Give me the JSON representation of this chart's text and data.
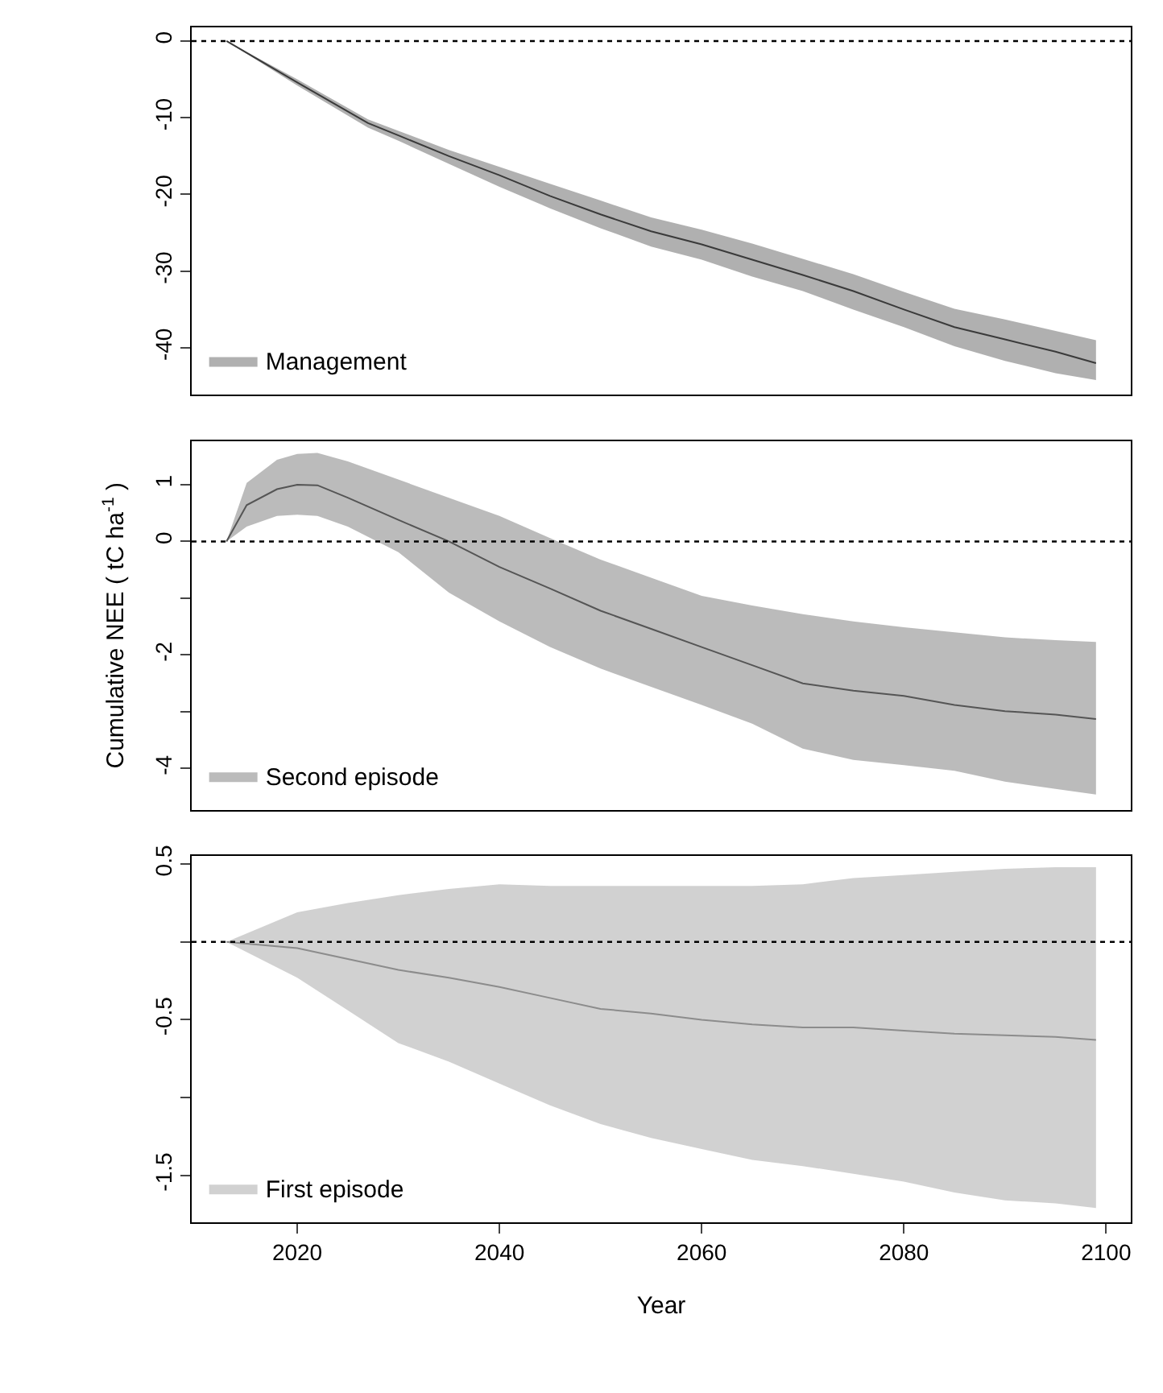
{
  "chart_data": [
    {
      "type": "line",
      "xlim": [
        2009.56,
        2102.44
      ],
      "ylim": [
        -46.1,
        1.8
      ],
      "yticks": [
        0,
        -10,
        -20,
        -30,
        -40
      ],
      "tick_labels": "y",
      "legend": "bottom left",
      "ref_lines": [
        {
          "axis": "y",
          "value": 0,
          "line_style": "dotted",
          "color": "#000000"
        }
      ],
      "series": [
        {
          "name": "Management",
          "color": "#3a3a3a",
          "x": [
            2013,
            2020,
            2027,
            2030,
            2035,
            2040,
            2045,
            2050,
            2055,
            2060,
            2065,
            2070,
            2075,
            2080,
            2085,
            2090,
            2095,
            2099
          ],
          "values": [
            0,
            -5.4,
            -10.7,
            -12.3,
            -15,
            -17.5,
            -20.2,
            -22.6,
            -24.8,
            -26.5,
            -28.5,
            -30.5,
            -32.6,
            -35,
            -37.3,
            -38.9,
            -40.5,
            -42
          ],
          "lower": [
            0,
            -5.8,
            -11.3,
            -13,
            -16,
            -19,
            -21.8,
            -24.4,
            -26.8,
            -28.5,
            -30.7,
            -32.6,
            -35,
            -37.3,
            -39.8,
            -41.7,
            -43.3,
            -44.2
          ],
          "upper": [
            0,
            -5,
            -10.2,
            -11.7,
            -14.2,
            -16.4,
            -18.6,
            -20.8,
            -23,
            -24.6,
            -26.4,
            -28.4,
            -30.4,
            -32.7,
            -34.9,
            -36.3,
            -37.8,
            -39
          ]
        }
      ]
    },
    {
      "type": "line",
      "xlim": [
        2009.56,
        2102.44
      ],
      "ylim": [
        -4.73,
        1.77
      ],
      "yticks": [
        1,
        0,
        {
          "value": -1,
          "label": null
        },
        -2,
        {
          "value": -3,
          "label": null
        },
        -4
      ],
      "tick_labels": "y",
      "legend": "bottom left",
      "ylabel": "Cumulative NEE ( tC ha$^{-1}$ )",
      "ref_lines": [
        {
          "axis": "y",
          "value": 0,
          "line_style": "dotted",
          "color": "#000000"
        }
      ],
      "series": [
        {
          "name": "Second episode",
          "color": "#555555",
          "x": [
            2013,
            2015,
            2018,
            2020,
            2022,
            2025,
            2030,
            2035,
            2040,
            2045,
            2050,
            2055,
            2060,
            2065,
            2070,
            2075,
            2080,
            2085,
            2090,
            2095,
            2099
          ],
          "values": [
            0,
            0.64,
            0.92,
            1.0,
            0.99,
            0.77,
            0.38,
            0,
            -0.45,
            -0.83,
            -1.22,
            -1.54,
            -1.86,
            -2.18,
            -2.5,
            -2.63,
            -2.72,
            -2.88,
            -2.99,
            -3.05,
            -3.13
          ],
          "lower": [
            0,
            0.26,
            0.45,
            0.47,
            0.45,
            0.26,
            -0.19,
            -0.9,
            -1.41,
            -1.86,
            -2.24,
            -2.56,
            -2.88,
            -3.21,
            -3.65,
            -3.85,
            -3.94,
            -4.04,
            -4.23,
            -4.36,
            -4.46
          ],
          "upper": [
            0,
            1.03,
            1.44,
            1.54,
            1.56,
            1.41,
            1.09,
            0.77,
            0.45,
            0.06,
            -0.32,
            -0.64,
            -0.96,
            -1.13,
            -1.28,
            -1.41,
            -1.51,
            -1.6,
            -1.69,
            -1.74,
            -1.77
          ]
        }
      ]
    },
    {
      "type": "line",
      "xlim": [
        2009.56,
        2102.44
      ],
      "xticks": [
        2020,
        2040,
        2060,
        2080,
        2100
      ],
      "ylim": [
        -1.8,
        0.55
      ],
      "yticks": [
        0.5,
        {
          "value": 0,
          "label": null
        },
        -0.5,
        {
          "value": -1,
          "label": null
        },
        -1.5
      ],
      "legend": "bottom left",
      "xlabel": "Year",
      "ref_lines": [
        {
          "axis": "y",
          "value": 0,
          "line_style": "dotted",
          "color": "#000000"
        }
      ],
      "series": [
        {
          "name": "First episode",
          "color": "#8c8c8c",
          "x": [
            2013,
            2020,
            2025,
            2030,
            2035,
            2040,
            2045,
            2050,
            2055,
            2060,
            2065,
            2070,
            2075,
            2080,
            2085,
            2090,
            2095,
            2099
          ],
          "values": [
            0,
            -0.04,
            -0.11,
            -0.18,
            -0.23,
            -0.29,
            -0.36,
            -0.43,
            -0.46,
            -0.5,
            -0.53,
            -0.55,
            -0.55,
            -0.57,
            -0.59,
            -0.6,
            -0.61,
            -0.63
          ],
          "lower": [
            0,
            -0.23,
            -0.44,
            -0.65,
            -0.77,
            -0.91,
            -1.05,
            -1.17,
            -1.26,
            -1.33,
            -1.4,
            -1.44,
            -1.49,
            -1.54,
            -1.61,
            -1.66,
            -1.68,
            -1.71
          ],
          "upper": [
            0,
            0.19,
            0.25,
            0.3,
            0.34,
            0.37,
            0.36,
            0.36,
            0.36,
            0.36,
            0.36,
            0.37,
            0.41,
            0.43,
            0.45,
            0.47,
            0.48,
            0.48
          ]
        }
      ]
    }
  ]
}
